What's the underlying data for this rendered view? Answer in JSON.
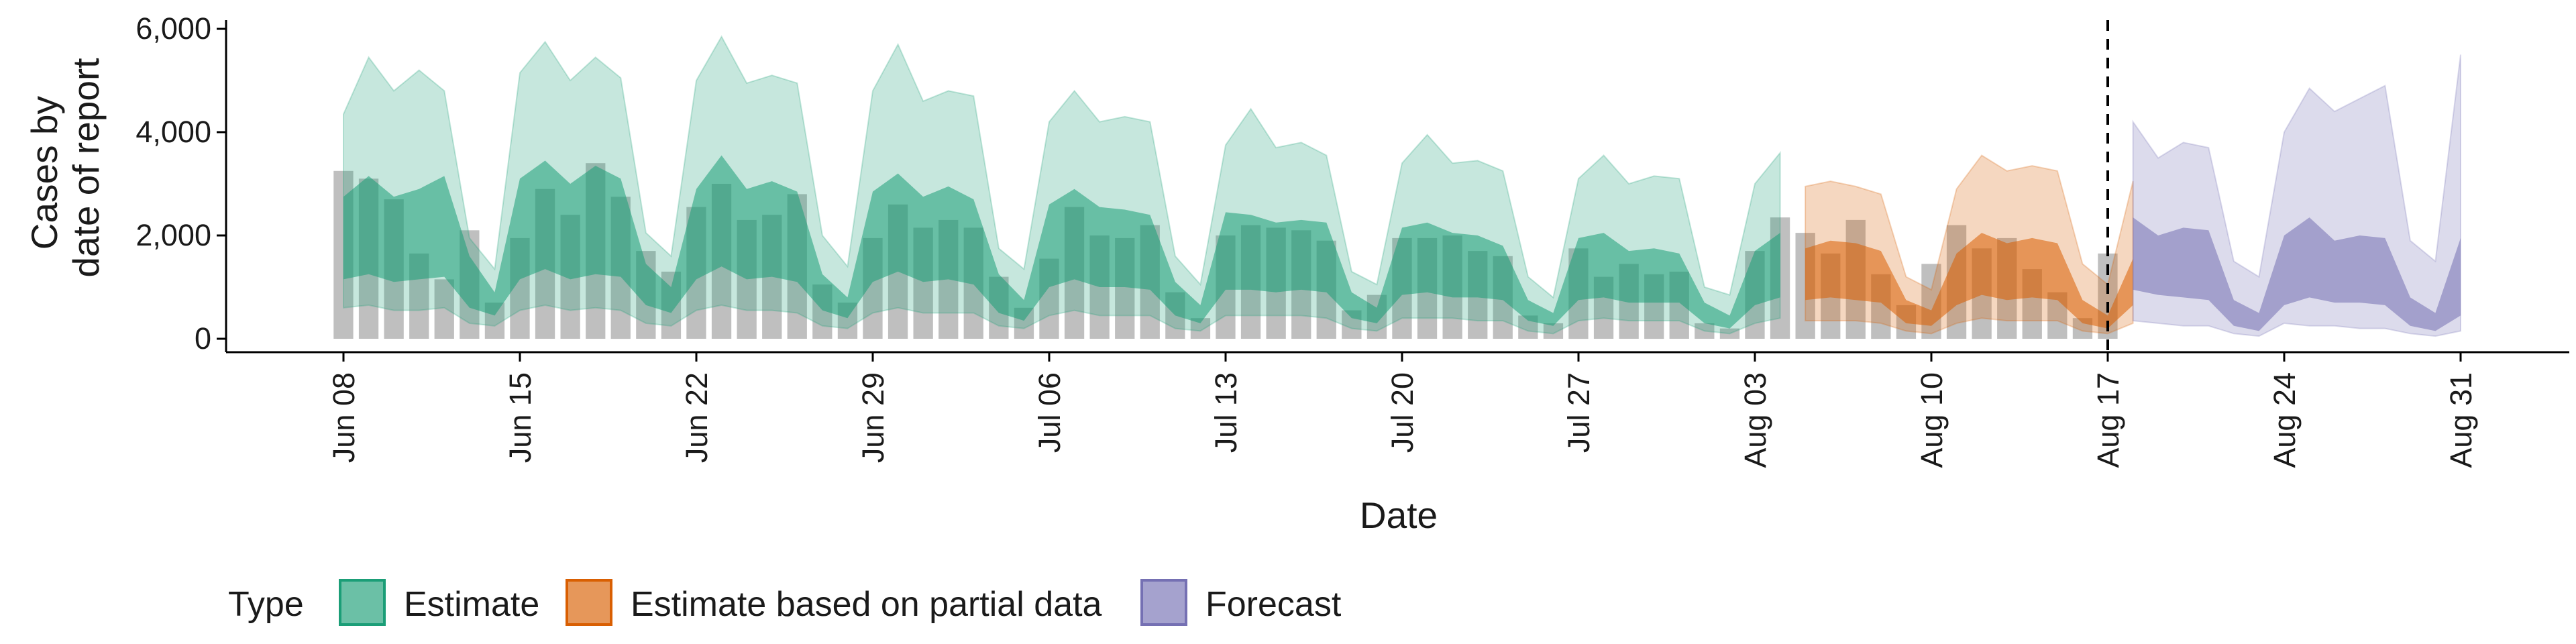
{
  "chart_data": {
    "type": "area",
    "xlabel": "Date",
    "ylabel_lines": [
      "Cases by",
      "date of report"
    ],
    "ylim": [
      0,
      6000
    ],
    "yticks": [
      0,
      2000,
      4000,
      6000
    ],
    "ytick_labels": [
      "0",
      "2,000",
      "4,000",
      "6,000"
    ],
    "xlim": [
      "2020-06-08",
      "2020-08-31"
    ],
    "xtick_labels": [
      "Jun 08",
      "Jun 15",
      "Jun 22",
      "Jun 29",
      "Jul 06",
      "Jul 13",
      "Jul 20",
      "Jul 27",
      "Aug 03",
      "Aug 10",
      "Aug 17",
      "Aug 24",
      "Aug 31"
    ],
    "reference_line": {
      "date": "2020-08-17",
      "style": "dashed"
    },
    "legend": {
      "position": "bottom",
      "title": "Type",
      "entries": [
        {
          "label": "Estimate",
          "color": "#1b9e77"
        },
        {
          "label": "Estimate based on partial data",
          "color": "#d95f02"
        },
        {
          "label": "Forecast",
          "color": "#7570b3"
        }
      ]
    },
    "reported_cases": {
      "start": "2020-06-08",
      "color": "#a9a9a9",
      "values": [
        3250,
        3100,
        2700,
        1650,
        1150,
        2100,
        700,
        1950,
        2900,
        2400,
        3400,
        2750,
        1700,
        1300,
        2550,
        3000,
        2300,
        2400,
        2800,
        1050,
        700,
        1950,
        2600,
        2150,
        2300,
        2150,
        1200,
        600,
        1550,
        2550,
        2000,
        1950,
        2200,
        900,
        400,
        2000,
        2200,
        2150,
        2100,
        1900,
        550,
        850,
        1950,
        1950,
        2000,
        1700,
        1600,
        450,
        300,
        1750,
        1200,
        1450,
        1250,
        1300,
        300,
        200,
        1700,
        2350,
        2050,
        1650,
        2300,
        1250,
        650,
        1450,
        2200,
        1750,
        1950,
        1350,
        900,
        400,
        1650
      ]
    },
    "series": [
      {
        "name": "Estimate",
        "start": "2020-06-08",
        "color": "#1b9e77",
        "upper90": [
          4350,
          5450,
          4800,
          5200,
          4800,
          1950,
          1350,
          5150,
          5750,
          5000,
          5450,
          5050,
          2050,
          1600,
          5000,
          5850,
          4950,
          5100,
          4950,
          2000,
          1400,
          4800,
          5700,
          4600,
          4800,
          4700,
          1750,
          1350,
          4200,
          4800,
          4200,
          4300,
          4200,
          1600,
          1050,
          3750,
          4450,
          3700,
          3800,
          3550,
          1300,
          1050,
          3400,
          3950,
          3400,
          3450,
          3250,
          1200,
          800,
          3100,
          3550,
          3000,
          3150,
          3100,
          1000,
          850,
          3000,
          3600
        ],
        "upper50": [
          2750,
          3150,
          2750,
          2900,
          3150,
          1600,
          900,
          3100,
          3450,
          3000,
          3350,
          3100,
          1450,
          1000,
          2900,
          3550,
          2900,
          3050,
          2850,
          1250,
          800,
          2850,
          3200,
          2750,
          2950,
          2700,
          1250,
          750,
          2600,
          2900,
          2550,
          2500,
          2400,
          1100,
          650,
          2450,
          2400,
          2250,
          2300,
          2250,
          900,
          600,
          2150,
          2250,
          2050,
          2000,
          1800,
          750,
          500,
          1950,
          2050,
          1700,
          1750,
          1650,
          700,
          450,
          1700,
          2050
        ],
        "lower50": [
          1150,
          1250,
          1100,
          1150,
          1200,
          600,
          450,
          1150,
          1350,
          1150,
          1250,
          1200,
          650,
          500,
          1150,
          1400,
          1150,
          1200,
          1100,
          550,
          400,
          1100,
          1300,
          1100,
          1150,
          1050,
          500,
          350,
          1000,
          1150,
          1000,
          1000,
          950,
          450,
          300,
          950,
          950,
          900,
          950,
          900,
          400,
          300,
          850,
          900,
          800,
          800,
          750,
          350,
          250,
          750,
          800,
          700,
          700,
          700,
          300,
          200,
          650,
          800
        ],
        "lower90": [
          600,
          650,
          550,
          550,
          600,
          300,
          250,
          550,
          650,
          550,
          600,
          550,
          300,
          250,
          550,
          650,
          550,
          550,
          500,
          250,
          200,
          500,
          600,
          500,
          500,
          500,
          250,
          200,
          450,
          550,
          450,
          450,
          450,
          200,
          150,
          450,
          450,
          450,
          450,
          400,
          200,
          150,
          400,
          400,
          400,
          350,
          350,
          150,
          100,
          350,
          400,
          350,
          350,
          350,
          150,
          100,
          300,
          400
        ]
      },
      {
        "name": "Estimate based on partial data",
        "start": "2020-08-05",
        "color": "#d95f02",
        "upper90": [
          2950,
          3050,
          2950,
          2800,
          1200,
          950,
          2900,
          3550,
          3250,
          3350,
          3250,
          1450,
          1050,
          3050
        ],
        "upper50": [
          1750,
          1900,
          1850,
          1700,
          750,
          550,
          1650,
          2050,
          1850,
          1950,
          1850,
          750,
          450,
          1550
        ],
        "lower50": [
          750,
          800,
          750,
          700,
          300,
          250,
          650,
          850,
          750,
          800,
          750,
          300,
          200,
          650
        ],
        "lower90": [
          350,
          350,
          350,
          300,
          150,
          100,
          300,
          400,
          350,
          350,
          350,
          150,
          100,
          300
        ]
      },
      {
        "name": "Forecast",
        "start": "2020-08-18",
        "color": "#7570b3",
        "upper90": [
          4200,
          3500,
          3800,
          3700,
          1500,
          1200,
          4000,
          4850,
          4400,
          4650,
          4900,
          1900,
          1500,
          5500
        ],
        "upper50": [
          2350,
          2000,
          2150,
          2100,
          750,
          500,
          2000,
          2350,
          1900,
          2000,
          1950,
          800,
          500,
          1950
        ],
        "lower50": [
          950,
          850,
          800,
          750,
          250,
          150,
          650,
          800,
          700,
          700,
          650,
          250,
          150,
          450
        ],
        "lower90": [
          350,
          300,
          250,
          250,
          100,
          50,
          300,
          250,
          250,
          200,
          200,
          100,
          50,
          150
        ]
      }
    ]
  }
}
